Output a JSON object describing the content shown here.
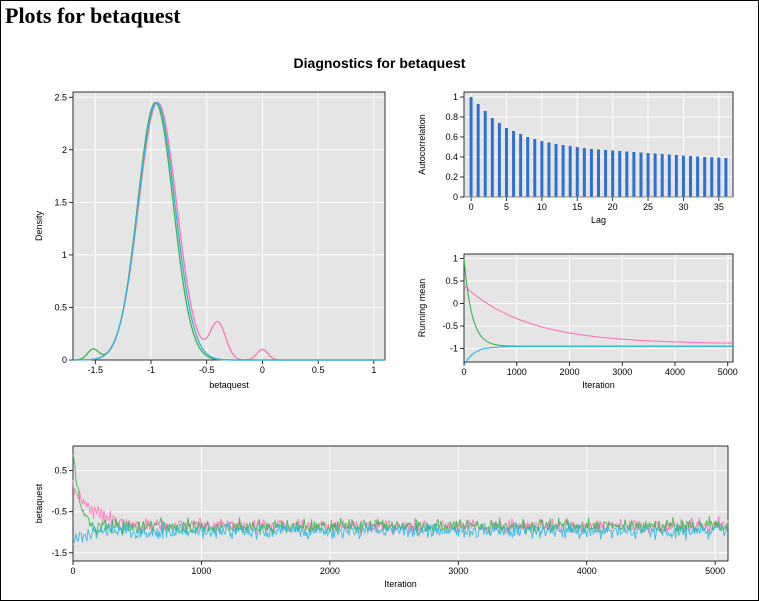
{
  "title": "Plots for betaquest",
  "subtitle": "Diagnostics for betaquest",
  "palette": {
    "plot_bg": "#e5e5e5",
    "grid": "#ffffff",
    "axis": "#000000",
    "series": {
      "chain1": "#ff73b9",
      "chain2": "#39b54a",
      "chain3": "#29b6e6"
    },
    "bar": "#2e6fd0"
  },
  "density": {
    "type": "line",
    "title": null,
    "xlabel": "betaquest",
    "ylabel": "Density",
    "xlim": [
      -1.7,
      1.1
    ],
    "ylim": [
      0.0,
      2.55
    ],
    "xticks": [
      -1.5,
      -1.0,
      -0.5,
      0.0,
      0.5,
      1.0
    ],
    "yticks": [
      0.0,
      0.5,
      1.0,
      1.5,
      2.0,
      2.5
    ],
    "mu": -0.95,
    "sigma": 0.165,
    "peak": 2.45,
    "series": [
      {
        "color_key": "chain1",
        "mu_shift": 0.01,
        "sigma_mult": 1.03,
        "bumps": [
          {
            "x": -0.4,
            "h": 0.35,
            "w": 0.07
          },
          {
            "x": 0.0,
            "h": 0.1,
            "w": 0.05
          }
        ]
      },
      {
        "color_key": "chain2",
        "mu_shift": -0.01,
        "sigma_mult": 0.97,
        "bumps": [
          {
            "x": -1.52,
            "h": 0.1,
            "w": 0.05
          }
        ]
      },
      {
        "color_key": "chain3",
        "mu_shift": 0.0,
        "sigma_mult": 1.0,
        "bumps": []
      }
    ],
    "label_fontsize": 9
  },
  "acf": {
    "type": "bar",
    "xlabel": "Lag",
    "ylabel": "Autocorrelation",
    "xlim": [
      -1,
      37
    ],
    "ylim": [
      0.0,
      1.05
    ],
    "xticks": [
      0,
      5,
      10,
      15,
      20,
      25,
      30,
      35
    ],
    "yticks": [
      0.0,
      0.2,
      0.4,
      0.6,
      0.8,
      1.0
    ],
    "lags": [
      0,
      1,
      2,
      3,
      4,
      5,
      6,
      7,
      8,
      9,
      10,
      11,
      12,
      13,
      14,
      15,
      16,
      17,
      18,
      19,
      20,
      21,
      22,
      23,
      24,
      25,
      26,
      27,
      28,
      29,
      30,
      31,
      32,
      33,
      34,
      35,
      36
    ],
    "values": [
      1.0,
      0.93,
      0.86,
      0.79,
      0.74,
      0.69,
      0.66,
      0.63,
      0.6,
      0.58,
      0.56,
      0.545,
      0.53,
      0.52,
      0.51,
      0.5,
      0.49,
      0.48,
      0.475,
      0.47,
      0.465,
      0.46,
      0.455,
      0.45,
      0.445,
      0.44,
      0.435,
      0.43,
      0.425,
      0.42,
      0.415,
      0.41,
      0.405,
      0.4,
      0.398,
      0.395,
      0.39
    ],
    "bar_width": 0.42,
    "bar_color_key": "bar",
    "label_fontsize": 9
  },
  "rmean": {
    "type": "line",
    "xlabel": "Iteration",
    "ylabel": "Running mean",
    "xlim": [
      0,
      5100
    ],
    "ylim": [
      -1.3,
      1.1
    ],
    "xticks": [
      0,
      1000,
      2000,
      3000,
      4000,
      5000
    ],
    "yticks": [
      -1.0,
      -0.5,
      0.0,
      0.5,
      1.0
    ],
    "series": [
      {
        "color_key": "chain1",
        "start": 0.4,
        "settle": -0.9,
        "tau": 1200,
        "noise": 0.0
      },
      {
        "color_key": "chain2",
        "start": 1.0,
        "settle": -0.95,
        "tau": 150,
        "noise": 0.0
      },
      {
        "color_key": "chain3",
        "start": -1.2,
        "settle": -0.95,
        "tau": 250,
        "noise": 0.0
      }
    ],
    "label_fontsize": 9
  },
  "trace": {
    "type": "line",
    "xlabel": "Iteration",
    "ylabel": "betaquest",
    "xlim": [
      0,
      5100
    ],
    "ylim": [
      -1.7,
      1.1
    ],
    "xticks": [
      0,
      1000,
      2000,
      3000,
      4000,
      5000
    ],
    "yticks": [
      -1.5,
      -0.5,
      0.5
    ],
    "n": 700,
    "series": [
      {
        "color_key": "chain1",
        "mean_start": 0.1,
        "mean_end": -0.9,
        "burn": 80,
        "sd": 0.17
      },
      {
        "color_key": "chain2",
        "mean_start": 0.9,
        "mean_end": -0.95,
        "burn": 25,
        "sd": 0.17
      },
      {
        "color_key": "chain3",
        "mean_start": -1.3,
        "mean_end": -0.95,
        "burn": 40,
        "sd": 0.17
      }
    ],
    "label_fontsize": 9
  }
}
